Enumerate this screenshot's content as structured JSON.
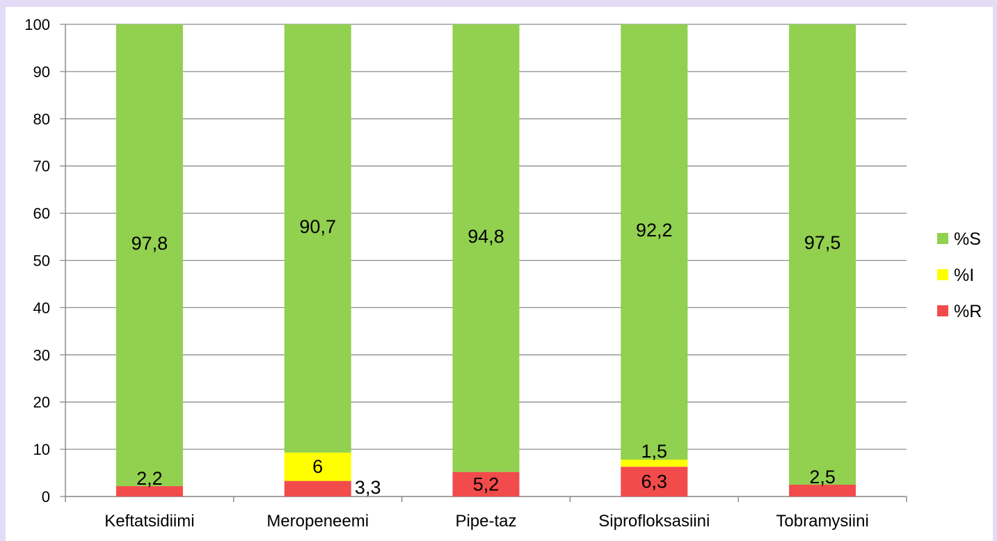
{
  "chart_data": {
    "type": "bar",
    "stacked": true,
    "title": "",
    "xlabel": "",
    "ylabel": "",
    "ylim": [
      0,
      100
    ],
    "yticks": [
      "0",
      "10",
      "20",
      "30",
      "40",
      "50",
      "60",
      "70",
      "80",
      "90",
      "100"
    ],
    "grid": true,
    "legend_position": "right",
    "categories": [
      "Keftatsidiimi",
      "Meropeneemi",
      "Pipe-taz",
      "Siprofloksasiini",
      "Tobramysiini"
    ],
    "series": [
      {
        "name": "%R",
        "color": "#f24b4b",
        "values": [
          2.2,
          3.3,
          5.2,
          6.3,
          2.5
        ],
        "labels": [
          "2,2",
          "3,3",
          "5,2",
          "6,3",
          "2,5"
        ]
      },
      {
        "name": "%I",
        "color": "#ffff00",
        "values": [
          0,
          6,
          0,
          1.5,
          0
        ],
        "labels": [
          "",
          "6",
          "",
          "1,5",
          ""
        ]
      },
      {
        "name": "%S",
        "color": "#92d050",
        "values": [
          97.8,
          90.7,
          94.8,
          92.2,
          97.5
        ],
        "labels": [
          "97,8",
          "90,7",
          "94,8",
          "92,2",
          "97,5"
        ]
      }
    ],
    "legend_order": [
      "%S",
      "%I",
      "%R"
    ]
  }
}
